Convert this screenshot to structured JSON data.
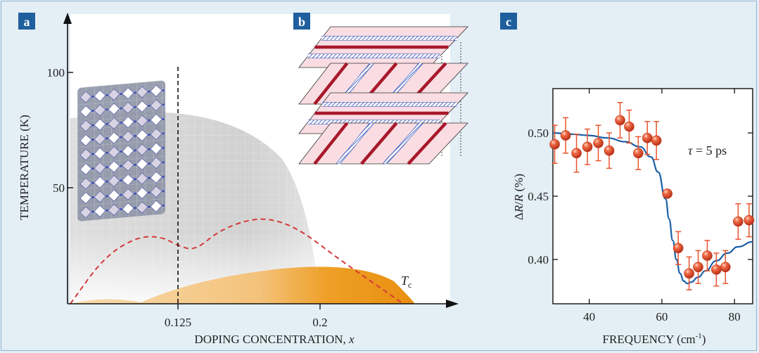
{
  "panels": {
    "a": {
      "letter": "a",
      "ylabel": "TEMPERATURE (K)",
      "xlabel_text": "DOPING CONCENTRATION, ",
      "xlabel_var": "x",
      "y_ticks": [
        {
          "value": 100,
          "label": "100"
        },
        {
          "value": 50,
          "label": "50"
        }
      ],
      "x_ticks": [
        {
          "value": 0.125,
          "label": "0.125"
        },
        {
          "value": 0.2,
          "label": "0.2"
        }
      ],
      "tc_main": "T",
      "tc_sub": "c"
    },
    "b": {
      "letter": "b"
    },
    "c": {
      "letter": "c",
      "ylabel_delta": "Δ",
      "ylabel_R1": "R",
      "ylabel_slash": "/",
      "ylabel_R2": "R",
      "ylabel_unit": " (%)",
      "xlabel_main": "FREQUENCY (cm",
      "xlabel_sup": "-1",
      "xlabel_close": ")",
      "annotation_tau": "τ",
      "annotation_rest": " = 5 ps"
    }
  },
  "colors": {
    "panel_letter_bg": "#1f5f9e",
    "background": "#e3eef5",
    "data_point": "#e8542e",
    "error_bar": "#e8542e",
    "fit_curve": "#1a5fa8",
    "dome": "#d43a3a",
    "stripe_charge": "#a8182a",
    "stripe_spin": "#2a49b8",
    "plane_fill": "#f9dde2"
  },
  "chart_data": [
    {
      "type": "line",
      "panel": "a",
      "title": "",
      "xlabel": "DOPING CONCENTRATION, x",
      "ylabel": "TEMPERATURE (K)",
      "x_ticks": [
        0.125,
        0.2
      ],
      "y_ticks": [
        50,
        100
      ],
      "x_range": [
        0.05,
        0.26
      ],
      "y_range": [
        0,
        120
      ],
      "series": [
        {
          "name": "Tc",
          "style": "dashed",
          "x": [
            0.05,
            0.07,
            0.09,
            0.105,
            0.115,
            0.125,
            0.14,
            0.16,
            0.175,
            0.19,
            0.21,
            0.23,
            0.25
          ],
          "y": [
            0,
            20,
            29,
            29,
            25,
            23,
            32,
            37,
            36,
            31,
            20,
            10,
            0
          ]
        }
      ],
      "annotations": [
        "T_c",
        "dashed vertical line at x = 0.125"
      ]
    },
    {
      "type": "scatter",
      "panel": "c",
      "title": "",
      "xlabel": "FREQUENCY (cm-1)",
      "ylabel": "ΔR/R (%)",
      "x_ticks": [
        40,
        60,
        80
      ],
      "y_ticks": [
        0.4,
        0.45,
        0.5
      ],
      "x_range": [
        30,
        85
      ],
      "y_range": [
        0.365,
        0.535
      ],
      "annotation": "τ = 5 ps",
      "points": [
        {
          "x": 30.5,
          "y": 0.491,
          "err": 0.015
        },
        {
          "x": 33.5,
          "y": 0.498,
          "err": 0.014
        },
        {
          "x": 36.5,
          "y": 0.484,
          "err": 0.015
        },
        {
          "x": 39.5,
          "y": 0.489,
          "err": 0.014
        },
        {
          "x": 42.5,
          "y": 0.492,
          "err": 0.014
        },
        {
          "x": 45.5,
          "y": 0.486,
          "err": 0.014
        },
        {
          "x": 48.5,
          "y": 0.51,
          "err": 0.014
        },
        {
          "x": 51.0,
          "y": 0.505,
          "err": 0.013
        },
        {
          "x": 53.5,
          "y": 0.484,
          "err": 0.013
        },
        {
          "x": 56.0,
          "y": 0.496,
          "err": 0.013
        },
        {
          "x": 58.5,
          "y": 0.494,
          "err": 0.015
        },
        {
          "x": 61.5,
          "y": 0.452,
          "err": 0.0
        },
        {
          "x": 64.5,
          "y": 0.409,
          "err": 0.013
        },
        {
          "x": 67.5,
          "y": 0.389,
          "err": 0.013
        },
        {
          "x": 70.0,
          "y": 0.394,
          "err": 0.013
        },
        {
          "x": 72.5,
          "y": 0.403,
          "err": 0.012
        },
        {
          "x": 75.0,
          "y": 0.392,
          "err": 0.013
        },
        {
          "x": 77.5,
          "y": 0.394,
          "err": 0.013
        },
        {
          "x": 81.0,
          "y": 0.43,
          "err": 0.014
        },
        {
          "x": 84.0,
          "y": 0.431,
          "err": 0.013
        }
      ],
      "fit": {
        "name": "fit",
        "x": [
          30,
          35,
          40,
          45,
          50,
          54,
          57,
          59,
          61,
          62,
          63,
          64,
          65,
          66,
          67,
          68,
          70,
          72,
          75,
          78,
          81,
          85
        ],
        "y": [
          0.5,
          0.499,
          0.498,
          0.496,
          0.493,
          0.489,
          0.481,
          0.469,
          0.448,
          0.432,
          0.415,
          0.4,
          0.389,
          0.383,
          0.381,
          0.382,
          0.386,
          0.391,
          0.399,
          0.405,
          0.41,
          0.414
        ]
      }
    }
  ]
}
